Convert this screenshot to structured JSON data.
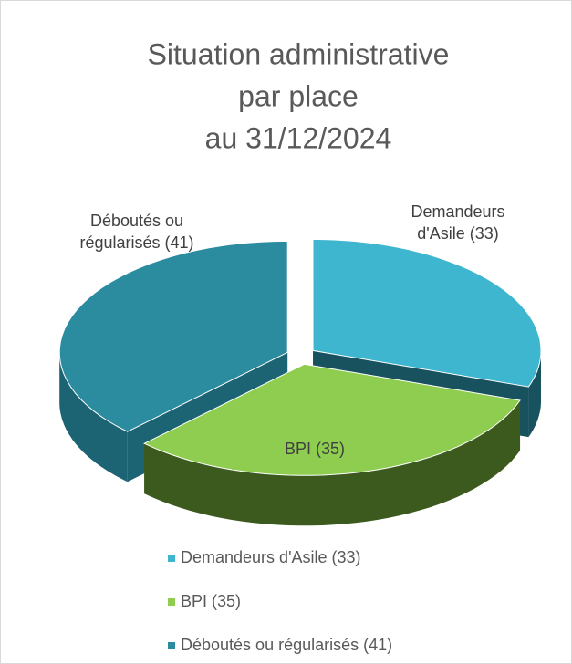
{
  "chart_data": {
    "type": "pie3d",
    "title": [
      "Situation administrative",
      "par place",
      "au 31/12/2024"
    ],
    "categories": [
      "Demandeurs d'Asile (33)",
      "BPI (35)",
      "Déboutés ou régularisés (41)"
    ],
    "values": [
      33,
      35,
      41
    ],
    "colors": [
      "#3fb6d0",
      "#8fcd50",
      "#2b8b9f"
    ],
    "side_colors": [
      "#17525e",
      "#3d5a1e",
      "#1c6473"
    ],
    "legend": "bottom"
  }
}
